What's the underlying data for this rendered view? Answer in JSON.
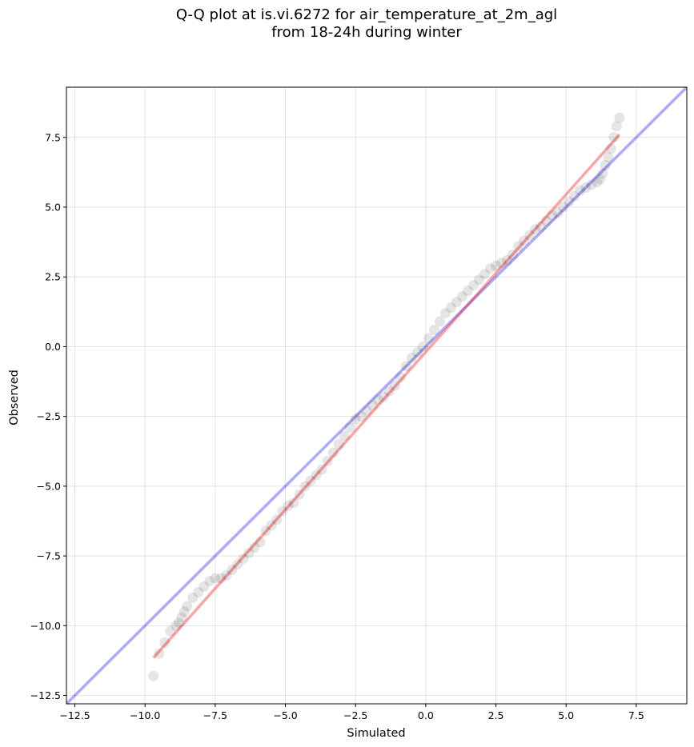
{
  "title_line1": "Q-Q plot at is.vi.6272 for air_temperature_at_2m_agl",
  "title_line2": "from 18-24h during winter",
  "chart_data": {
    "type": "scatter",
    "title": "Q-Q plot at is.vi.6272 for air_temperature_at_2m_agl from 18-24h during winter",
    "xlabel": "Simulated",
    "ylabel": "Observed",
    "xlim": [
      -12.8,
      9.3
    ],
    "ylim": [
      -12.8,
      9.3
    ],
    "x_ticks": [
      -12.5,
      -10.0,
      -7.5,
      -5.0,
      -2.5,
      0.0,
      2.5,
      5.0,
      7.5
    ],
    "x_tick_labels": [
      "−12.5",
      "−10.0",
      "−7.5",
      "−5.0",
      "−2.5",
      "0.0",
      "2.5",
      "5.0",
      "7.5"
    ],
    "y_ticks": [
      -12.5,
      -10.0,
      -7.5,
      -5.0,
      -2.5,
      0.0,
      2.5,
      5.0,
      7.5
    ],
    "y_tick_labels": [
      "−12.5",
      "−10.0",
      "−7.5",
      "−5.0",
      "−2.5",
      "0.0",
      "2.5",
      "5.0",
      "7.5"
    ],
    "grid": true,
    "colors": {
      "points": "#000000",
      "identity_line": "#0000ee",
      "fit_line": "#ee0000"
    },
    "quantile_points": {
      "x": [
        -9.7,
        -9.5,
        -9.3,
        -9.1,
        -8.9,
        -8.8,
        -8.7,
        -8.6,
        -8.5,
        -8.3,
        -8.1,
        -7.9,
        -7.7,
        -7.5,
        -7.3,
        -7.1,
        -6.9,
        -6.7,
        -6.5,
        -6.3,
        -6.1,
        -5.9,
        -5.7,
        -5.5,
        -5.3,
        -5.1,
        -4.9,
        -4.7,
        -4.5,
        -4.3,
        -4.1,
        -3.9,
        -3.7,
        -3.5,
        -3.3,
        -3.1,
        -2.9,
        -2.7,
        -2.5,
        -2.3,
        -2.1,
        -1.9,
        -1.7,
        -1.5,
        -1.3,
        -1.1,
        -0.9,
        -0.7,
        -0.5,
        -0.3,
        -0.1,
        0.1,
        0.3,
        0.5,
        0.7,
        0.9,
        1.1,
        1.3,
        1.5,
        1.7,
        1.9,
        2.1,
        2.3,
        2.5,
        2.7,
        2.9,
        3.1,
        3.3,
        3.5,
        3.7,
        3.9,
        4.1,
        4.3,
        4.5,
        4.7,
        4.9,
        5.1,
        5.3,
        5.5,
        5.7,
        5.9,
        6.1,
        6.2,
        6.3,
        6.4,
        6.5,
        6.6,
        6.7,
        6.8,
        6.9
      ],
      "y": [
        -11.8,
        -11.0,
        -10.6,
        -10.2,
        -10.0,
        -9.9,
        -9.7,
        -9.5,
        -9.3,
        -9.0,
        -8.8,
        -8.6,
        -8.4,
        -8.3,
        -8.3,
        -8.2,
        -8.0,
        -7.8,
        -7.6,
        -7.4,
        -7.2,
        -7.0,
        -6.6,
        -6.4,
        -6.2,
        -5.9,
        -5.7,
        -5.6,
        -5.3,
        -5.0,
        -4.8,
        -4.6,
        -4.4,
        -4.1,
        -3.8,
        -3.5,
        -3.2,
        -2.9,
        -2.6,
        -2.5,
        -2.3,
        -2.1,
        -1.9,
        -1.8,
        -1.6,
        -1.4,
        -1.1,
        -0.7,
        -0.4,
        -0.2,
        0.0,
        0.3,
        0.6,
        0.9,
        1.2,
        1.4,
        1.6,
        1.8,
        2.0,
        2.2,
        2.4,
        2.6,
        2.8,
        2.9,
        3.0,
        3.1,
        3.3,
        3.6,
        3.8,
        4.0,
        4.2,
        4.3,
        4.5,
        4.7,
        4.8,
        5.0,
        5.2,
        5.4,
        5.6,
        5.7,
        5.8,
        5.9,
        6.0,
        6.2,
        6.5,
        6.8,
        7.1,
        7.5,
        7.9,
        8.2
      ]
    },
    "identity_line": {
      "x": [
        -12.8,
        9.3
      ],
      "y": [
        -12.8,
        9.3
      ]
    },
    "fit_line": {
      "x": [
        -9.7,
        6.9
      ],
      "y": [
        -11.15,
        7.6
      ]
    }
  }
}
